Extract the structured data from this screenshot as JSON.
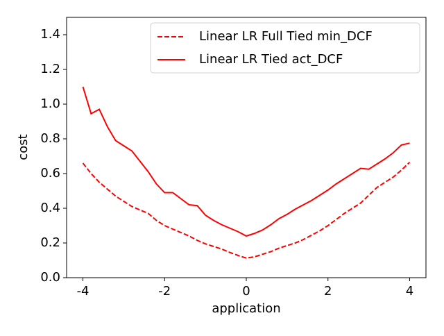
{
  "chart_data": {
    "type": "line",
    "xlabel": "application",
    "ylabel": "cost",
    "x": [
      -4.0,
      -3.8,
      -3.6,
      -3.4,
      -3.2,
      -3.0,
      -2.8,
      -2.6,
      -2.4,
      -2.2,
      -2.0,
      -1.8,
      -1.6,
      -1.4,
      -1.2,
      -1.0,
      -0.8,
      -0.6,
      -0.4,
      -0.2,
      0.0,
      0.2,
      0.4,
      0.6,
      0.8,
      1.0,
      1.2,
      1.4,
      1.6,
      1.8,
      2.0,
      2.2,
      2.4,
      2.6,
      2.8,
      3.0,
      3.2,
      3.4,
      3.6,
      3.8,
      4.0
    ],
    "series": [
      {
        "name": "Linear LR Full Tied min_DCF",
        "color": "#ff0000",
        "dash": true,
        "values": [
          0.66,
          0.6,
          0.55,
          0.51,
          0.47,
          0.44,
          0.41,
          0.39,
          0.37,
          0.33,
          0.3,
          0.28,
          0.26,
          0.24,
          0.215,
          0.195,
          0.18,
          0.165,
          0.145,
          0.128,
          0.113,
          0.12,
          0.135,
          0.15,
          0.17,
          0.185,
          0.2,
          0.22,
          0.245,
          0.27,
          0.3,
          0.335,
          0.37,
          0.4,
          0.43,
          0.475,
          0.52,
          0.55,
          0.58,
          0.62,
          0.665
        ]
      },
      {
        "name": "Linear LR Tied act_DCF",
        "color": "#ff0000",
        "dash": false,
        "values": [
          1.1,
          0.945,
          0.97,
          0.87,
          0.79,
          0.76,
          0.73,
          0.67,
          0.61,
          0.54,
          0.49,
          0.49,
          0.455,
          0.42,
          0.415,
          0.36,
          0.33,
          0.305,
          0.285,
          0.265,
          0.24,
          0.255,
          0.275,
          0.305,
          0.34,
          0.365,
          0.395,
          0.42,
          0.445,
          0.475,
          0.505,
          0.54,
          0.57,
          0.6,
          0.63,
          0.625,
          0.655,
          0.685,
          0.72,
          0.765,
          0.775
        ]
      }
    ],
    "xlim": [
      -4.4,
      4.4
    ],
    "xticks": [
      -4,
      -2,
      0,
      2,
      4
    ],
    "ylim": [
      0,
      1.5
    ],
    "yticks": [
      {
        "value": 0,
        "label": "0.0"
      },
      0.2,
      0.4,
      0.6,
      0.8,
      {
        "value": 1,
        "label": "1.0"
      },
      1.2,
      1.4
    ],
    "legend": "upper right",
    "grid": false
  }
}
